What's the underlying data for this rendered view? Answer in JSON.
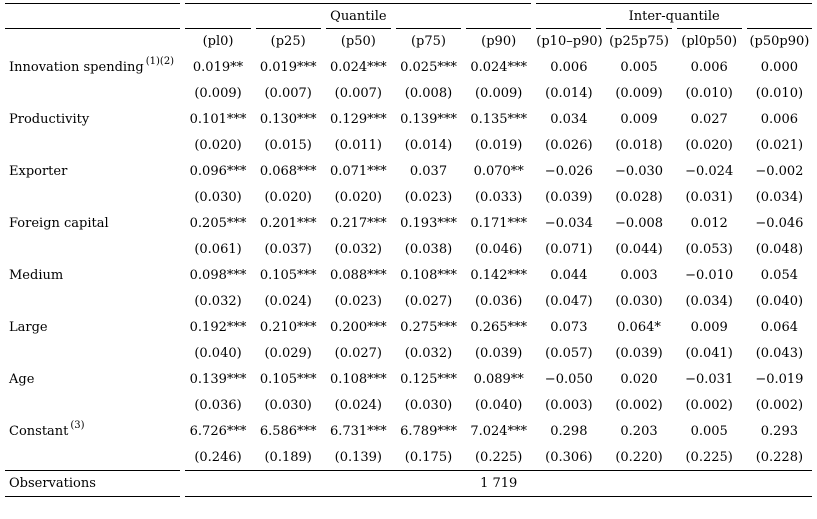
{
  "table": {
    "groups": [
      {
        "label": "Quantile",
        "span": 5
      },
      {
        "label": "Inter-quantile",
        "span": 4
      }
    ],
    "columns": [
      "(pl0)",
      "(p25)",
      "(p50)",
      "(p75)",
      "(p90)",
      "(p10–p90)",
      "(p25p75)",
      "(pl0p50)",
      "(p50p90)"
    ],
    "rows": [
      {
        "label": "Innovation spending",
        "sup": "(1)(2)",
        "coefs": [
          "0.019**",
          "0.019***",
          "0.024***",
          "0.025***",
          "0.024***",
          "0.006",
          "0.005",
          "0.006",
          "0.000"
        ],
        "ses": [
          "(0.009)",
          "(0.007)",
          "(0.007)",
          "(0.008)",
          "(0.009)",
          "(0.014)",
          "(0.009)",
          "(0.010)",
          "(0.010)"
        ]
      },
      {
        "label": "Productivity",
        "sup": "",
        "coefs": [
          "0.101***",
          "0.130***",
          "0.129***",
          "0.139***",
          "0.135***",
          "0.034",
          "0.009",
          "0.027",
          "0.006"
        ],
        "ses": [
          "(0.020)",
          "(0.015)",
          "(0.011)",
          "(0.014)",
          "(0.019)",
          "(0.026)",
          "(0.018)",
          "(0.020)",
          "(0.021)"
        ]
      },
      {
        "label": "Exporter",
        "sup": "",
        "coefs": [
          "0.096***",
          "0.068***",
          "0.071***",
          "0.037",
          "0.070**",
          "−0.026",
          "−0.030",
          "−0.024",
          "−0.002"
        ],
        "ses": [
          "(0.030)",
          "(0.020)",
          "(0.020)",
          "(0.023)",
          "(0.033)",
          "(0.039)",
          "(0.028)",
          "(0.031)",
          "(0.034)"
        ]
      },
      {
        "label": "Foreign capital",
        "sup": "",
        "coefs": [
          "0.205***",
          "0.201***",
          "0.217***",
          "0.193***",
          "0.171***",
          "−0.034",
          "−0.008",
          "0.012",
          "−0.046"
        ],
        "ses": [
          "(0.061)",
          "(0.037)",
          "(0.032)",
          "(0.038)",
          "(0.046)",
          "(0.071)",
          "(0.044)",
          "(0.053)",
          "(0.048)"
        ]
      },
      {
        "label": "Medium",
        "sup": "",
        "coefs": [
          "0.098***",
          "0.105***",
          "0.088***",
          "0.108***",
          "0.142***",
          "0.044",
          "0.003",
          "−0.010",
          "0.054"
        ],
        "ses": [
          "(0.032)",
          "(0.024)",
          "(0.023)",
          "(0.027)",
          "(0.036)",
          "(0.047)",
          "(0.030)",
          "(0.034)",
          "(0.040)"
        ]
      },
      {
        "label": "Large",
        "sup": "",
        "coefs": [
          "0.192***",
          "0.210***",
          "0.200***",
          "0.275***",
          "0.265***",
          "0.073",
          "0.064*",
          "0.009",
          "0.064"
        ],
        "ses": [
          "(0.040)",
          "(0.029)",
          "(0.027)",
          "(0.032)",
          "(0.039)",
          "(0.057)",
          "(0.039)",
          "(0.041)",
          "(0.043)"
        ]
      },
      {
        "label": "Age",
        "sup": "",
        "coefs": [
          "0.139***",
          "0.105***",
          "0.108***",
          "0.125***",
          "0.089**",
          "−0.050",
          "0.020",
          "−0.031",
          "−0.019"
        ],
        "ses": [
          "(0.036)",
          "(0.030)",
          "(0.024)",
          "(0.030)",
          "(0.040)",
          "(0.003)",
          "(0.002)",
          "(0.002)",
          "(0.002)"
        ]
      },
      {
        "label": "Constant",
        "sup": "(3)",
        "coefs": [
          "6.726***",
          "6.586***",
          "6.731***",
          "6.789***",
          "7.024***",
          "0.298",
          "0.203",
          "0.005",
          "0.293"
        ],
        "ses": [
          "(0.246)",
          "(0.189)",
          "(0.139)",
          "(0.175)",
          "(0.225)",
          "(0.306)",
          "(0.220)",
          "(0.225)",
          "(0.228)"
        ]
      }
    ],
    "observations": {
      "label": "Observations",
      "value": "1 719"
    }
  }
}
